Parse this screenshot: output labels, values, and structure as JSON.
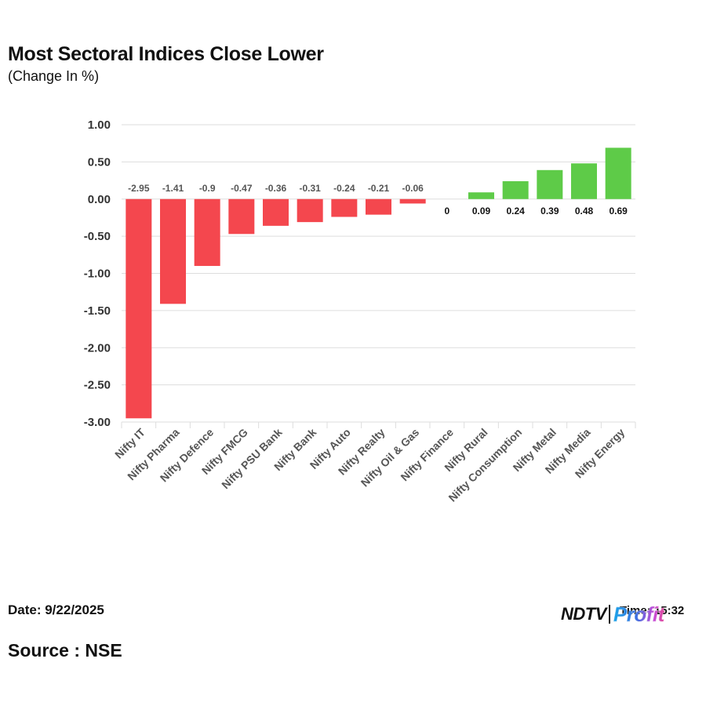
{
  "header": {
    "title": "Most Sectoral Indices Close Lower",
    "subtitle": "(Change In %)"
  },
  "footer": {
    "date": "Date: 9/22/2025",
    "source": "Source : NSE",
    "time": "Time: 15:32",
    "logo_left": "NDTV",
    "logo_right": "Profit"
  },
  "colors": {
    "negative": "#f4474e",
    "positive": "#5ecb48",
    "grid": "#dddddd",
    "negative_label": "#555555",
    "positive_label": "#111111"
  },
  "chart_data": {
    "type": "bar",
    "title": "Most Sectoral Indices Close Lower",
    "subtitle": "(Change In %)",
    "xlabel": "",
    "ylabel": "",
    "ylim": [
      -3.0,
      1.0
    ],
    "yticks": [
      1.0,
      0.5,
      0.0,
      -0.5,
      -1.0,
      -1.5,
      -2.0,
      -2.5,
      -3.0
    ],
    "ytick_labels": [
      "1.00",
      "0.50",
      "0.00",
      "-0.50",
      "-1.00",
      "-1.50",
      "-2.00",
      "-2.50",
      "-3.00"
    ],
    "grid": true,
    "categories": [
      "Nifty IT",
      "Nifty Pharma",
      "Nifty Defence",
      "Nifty FMCG",
      "Nifty PSU Bank",
      "Nifty Bank",
      "Nifty Auto",
      "Nifty Realty",
      "Nifty Oil & Gas",
      "Nifty Finance",
      "Nifty Rural",
      "Nifty Consumption",
      "Nifty Metal",
      "Nifty Media",
      "Nifty Energy"
    ],
    "values": [
      -2.95,
      -1.41,
      -0.9,
      -0.47,
      -0.36,
      -0.31,
      -0.24,
      -0.21,
      -0.06,
      0,
      0.09,
      0.24,
      0.39,
      0.48,
      0.69
    ],
    "data_labels": [
      "-2.95",
      "-1.41",
      "-0.9",
      "-0.47",
      "-0.36",
      "-0.31",
      "-0.24",
      "-0.21",
      "-0.06",
      "0",
      "0.09",
      "0.24",
      "0.39",
      "0.48",
      "0.69"
    ]
  }
}
